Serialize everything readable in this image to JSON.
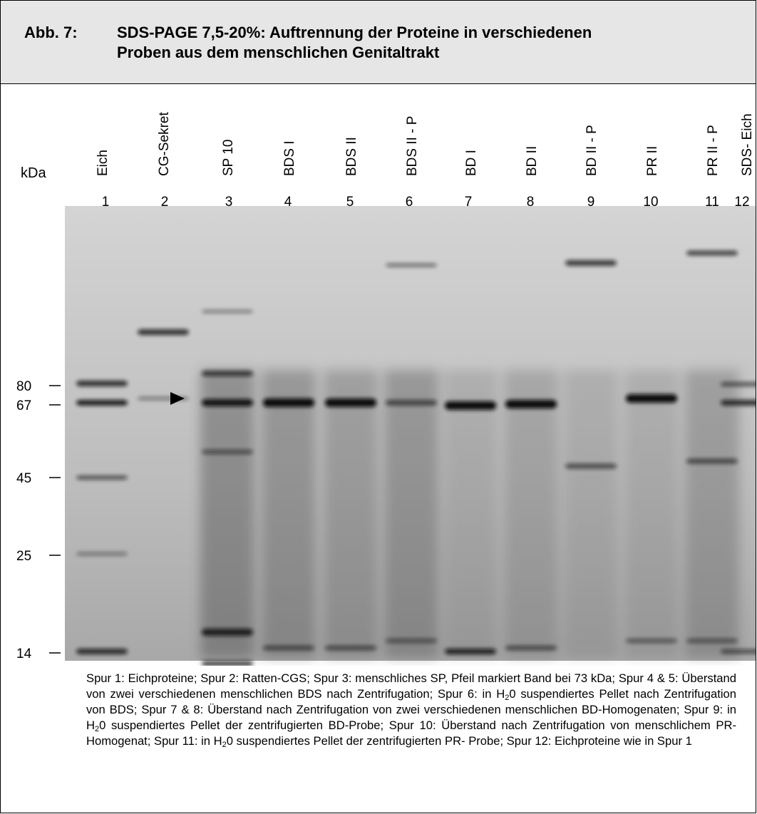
{
  "figure": {
    "label": "Abb. 7:",
    "title_lines": [
      "SDS-PAGE 7,5-20%: Auftrennung der Proteine in verschiedenen",
      "Proben aus dem menschlichen Genitaltrakt"
    ]
  },
  "axis_label": "kDa",
  "lanes": [
    {
      "name": "Eich",
      "number": 1
    },
    {
      "name": "CG-Sekret",
      "number": 2
    },
    {
      "name": "SP 10",
      "number": 3
    },
    {
      "name": "BDS I",
      "number": 4
    },
    {
      "name": "BDS II",
      "number": 5
    },
    {
      "name": "BDS II - P",
      "number": 6
    },
    {
      "name": "BD I",
      "number": 7
    },
    {
      "name": "BD II",
      "number": 8
    },
    {
      "name": "BD II - P",
      "number": 9
    },
    {
      "name": "PR II",
      "number": 10
    },
    {
      "name": "PR II - P",
      "number": 11
    },
    {
      "name": "SDS- Eich",
      "number": 12
    }
  ],
  "markers": [
    80,
    67,
    45,
    25,
    14
  ],
  "caption": [
    "Spur 1: Eichproteine; Spur 2: Ratten-CGS; Spur 3: menschliches SP, Pfeil markiert Band bei 73 kDa; Spur 4 & 5: Überstand von zwei verschiedenen menschlichen BDS nach Zentrifugation; Spur 6: in H",
    "2",
    "0 suspendiertes Pellet nach Zentrifugation von BDS; Spur 7 & 8: Überstand nach Zentrifugation von zwei verschiedenen menschlichen BD-Homogenaten; Spur 9: in H",
    "2",
    "0 suspendiertes Pellet der zentrifugierten BD-Probe; Spur 10: Überstand nach Zentrifugation von menschlichem PR-Homogenat; Spur 11: in H",
    "2",
    "0 suspendiertes Pellet der zentrifugierten PR- Probe; Spur 12: Eichproteine wie in Spur 1"
  ]
}
